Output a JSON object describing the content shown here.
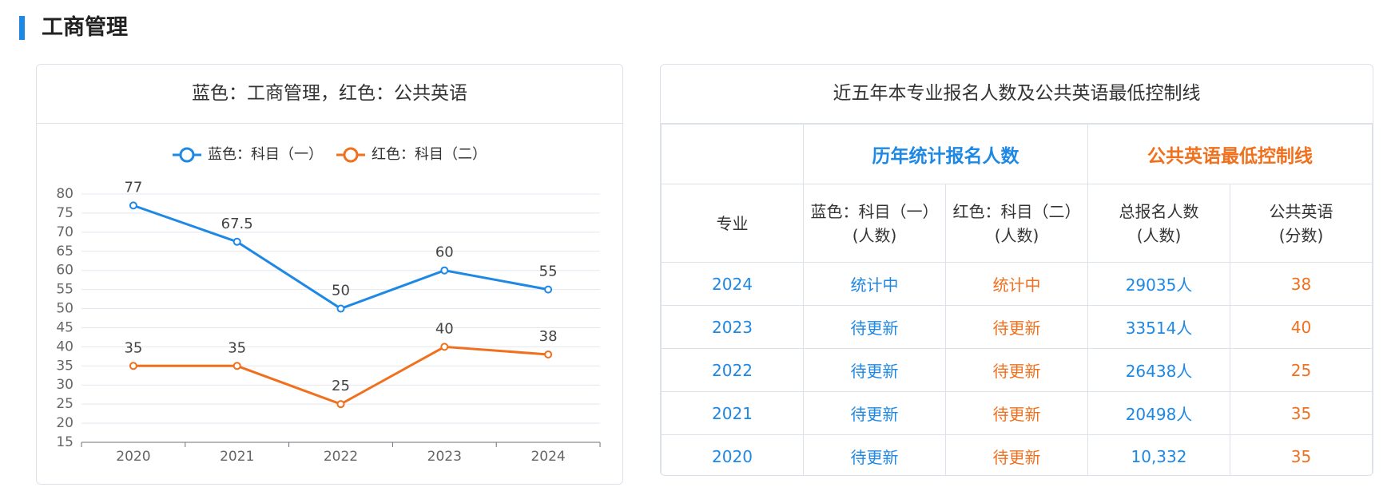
{
  "header": {
    "title": "工商管理"
  },
  "chart_data": {
    "type": "line",
    "title": "蓝色：工商管理，红色：公共英语",
    "categories": [
      "2020",
      "2021",
      "2022",
      "2023",
      "2024"
    ],
    "series": [
      {
        "name": "蓝色：科目（一）",
        "color": "#1e88e5",
        "values": [
          77,
          67.5,
          50,
          60,
          55
        ]
      },
      {
        "name": "红色：科目（二）",
        "color": "#f0701e",
        "values": [
          35,
          35,
          25,
          40,
          38
        ]
      }
    ],
    "ylim": [
      15,
      80
    ],
    "yticks": [
      15,
      20,
      25,
      30,
      35,
      40,
      45,
      50,
      55,
      60,
      65,
      70,
      75,
      80
    ],
    "grid": true
  },
  "table": {
    "title": "近五年本专业报名人数及公共英语最低控制线",
    "groups": [
      "历年统计报名人数",
      "公共英语最低控制线"
    ],
    "columns": [
      [
        "专业"
      ],
      [
        "蓝色：科目（一）",
        "(人数)"
      ],
      [
        "红色：科目（二）",
        "(人数)"
      ],
      [
        "总报名人数",
        "(人数)"
      ],
      [
        "公共英语",
        "(分数)"
      ]
    ],
    "rows": [
      [
        "2024",
        "统计中",
        "统计中",
        "29035人",
        "38"
      ],
      [
        "2023",
        "待更新",
        "待更新",
        "33514人",
        "40"
      ],
      [
        "2022",
        "待更新",
        "待更新",
        "26438人",
        "25"
      ],
      [
        "2021",
        "待更新",
        "待更新",
        "20498人",
        "35"
      ],
      [
        "2020",
        "待更新",
        "待更新",
        "10,332",
        "35"
      ]
    ]
  }
}
